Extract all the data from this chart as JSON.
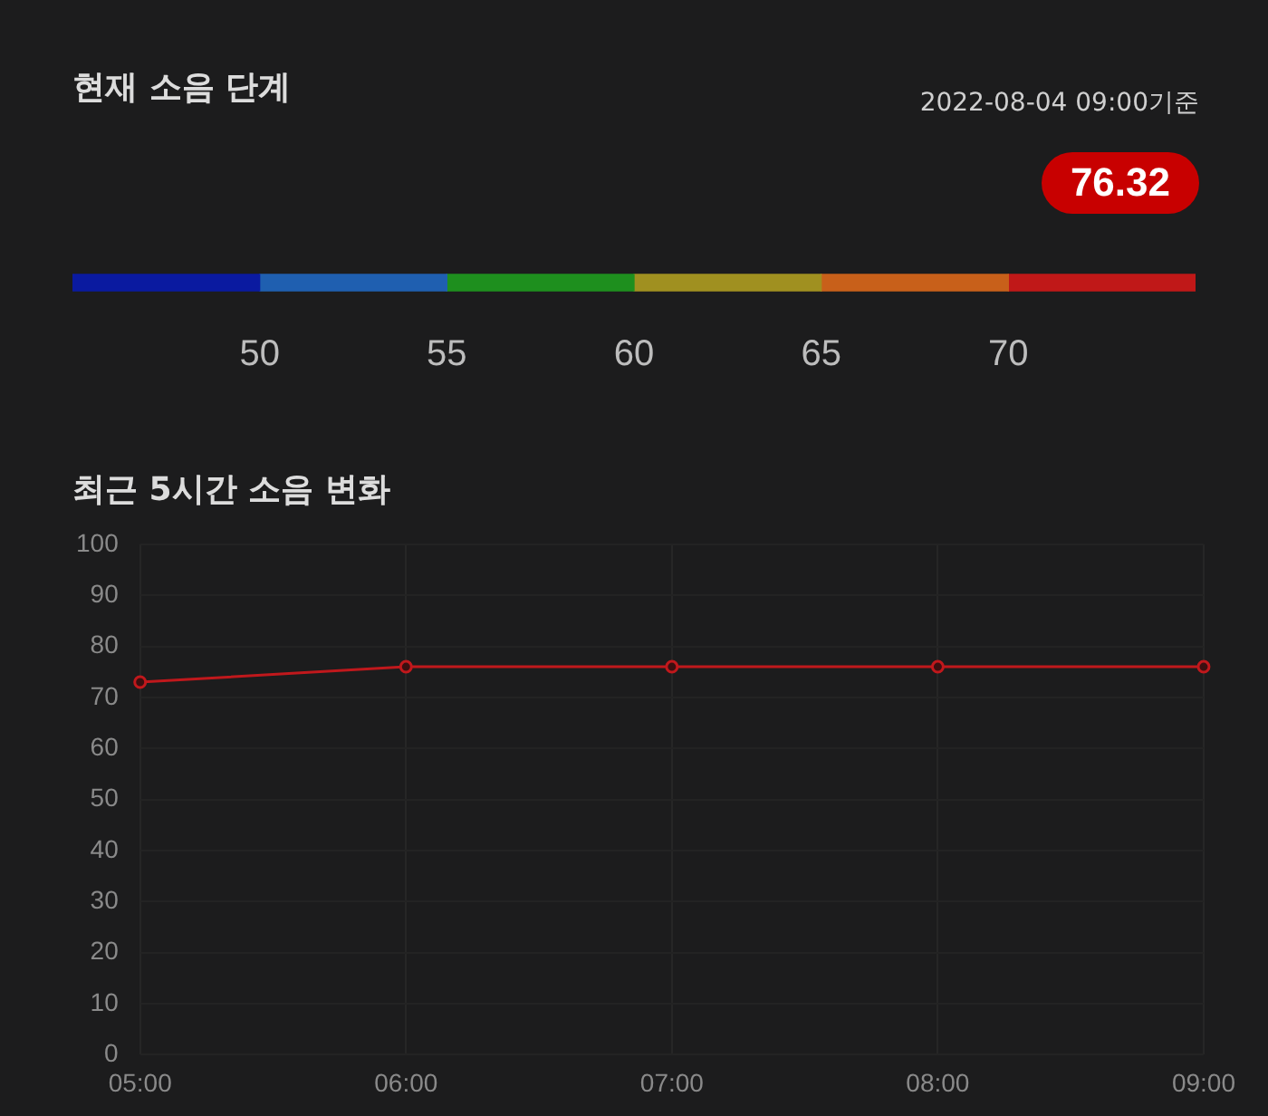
{
  "chart_data": [
    {
      "type": "bar",
      "orientation": "horizontal",
      "title": "현재 소음 단계",
      "annotations": [
        "2022-08-04 09:00기준",
        "76.32"
      ],
      "xlim": [
        45,
        75
      ],
      "xticks": [
        50,
        55,
        60,
        65,
        70
      ],
      "categories": [
        null
      ],
      "tick_labels": "x",
      "series": [
        {
          "color": "#0a1aa0",
          "base": [
            45
          ],
          "values": [
            5
          ]
        },
        {
          "color": "#1f5fb0",
          "base": [
            50
          ],
          "values": [
            5
          ]
        },
        {
          "color": "#1e8f1e",
          "base": [
            55
          ],
          "values": [
            5
          ]
        },
        {
          "color": "#a09020",
          "base": [
            60
          ],
          "values": [
            5
          ]
        },
        {
          "color": "#c8601a",
          "base": [
            65
          ],
          "values": [
            5
          ]
        },
        {
          "color": "#c01818",
          "base": [
            70
          ],
          "values": [
            5
          ]
        }
      ]
    },
    {
      "type": "line",
      "title": "최근 5시간 소음 변화",
      "categories": [
        "05:00",
        "06:00",
        "07:00",
        "08:00",
        "09:00"
      ],
      "series": [
        {
          "color": "#c0181c",
          "values": [
            73,
            76,
            76,
            76,
            76
          ]
        }
      ],
      "ylim": [
        0,
        100
      ],
      "yticks": [
        0,
        10,
        20,
        30,
        40,
        50,
        60,
        70,
        80,
        90,
        100
      ],
      "grid": true,
      "marker": "circle"
    }
  ]
}
